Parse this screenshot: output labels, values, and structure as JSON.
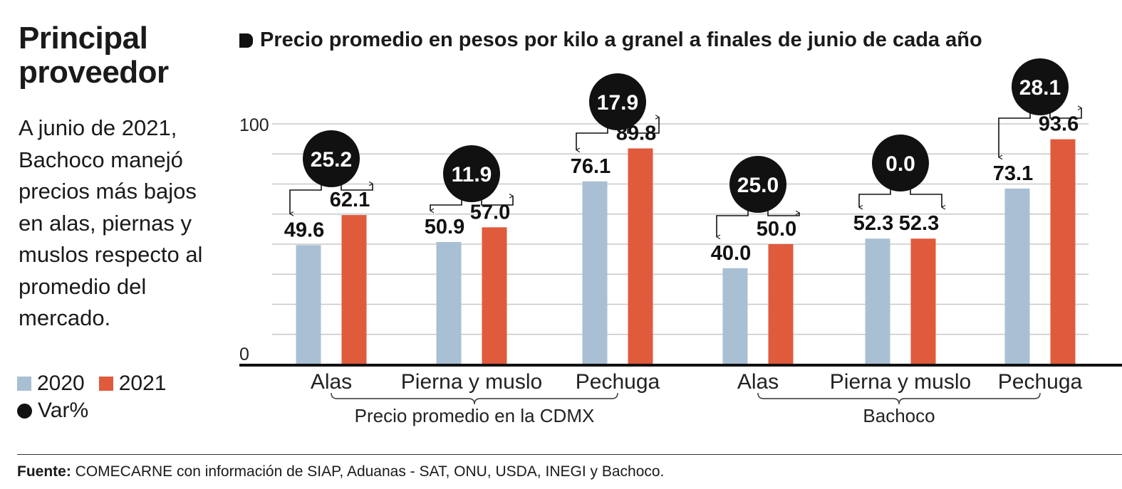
{
  "title": "Principal proveedor",
  "description": "A junio de 2021, Bachoco manejó precios más bajos en alas, piernas y muslos respecto al promedio del mercado.",
  "legend": {
    "series_2020": "2020",
    "series_2021": "2021",
    "var": "Var%"
  },
  "colors": {
    "series_2020": "#a9bfd3",
    "series_2021": "#df5b3c",
    "var_circle": "#111111",
    "gridline": "#c8c8c8"
  },
  "chart_data": {
    "type": "bar",
    "title": "Precio promedio en pesos por kilo a granel a finales de junio de cada año",
    "ylim": [
      0,
      100
    ],
    "yticks": [
      "0",
      "100"
    ],
    "grid": true,
    "legend_position": "left",
    "categories": [
      "Alas",
      "Pierna y muslo",
      "Pechuga",
      "Alas",
      "Pierna y muslo",
      "Pechuga"
    ],
    "groups": [
      {
        "label": "Precio promedio en la CDMX",
        "categories": [
          0,
          1,
          2
        ]
      },
      {
        "label": "Bachoco",
        "categories": [
          3,
          4,
          5
        ]
      }
    ],
    "series": [
      {
        "name": "2020",
        "values": [
          49.6,
          50.9,
          76.1,
          40.0,
          52.3,
          73.1
        ],
        "labels": [
          "49.6",
          "50.9",
          "76.1",
          "40.0",
          "52.3",
          "73.1"
        ]
      },
      {
        "name": "2021",
        "values": [
          62.1,
          57.0,
          89.8,
          50.0,
          52.3,
          93.6
        ],
        "labels": [
          "62.1",
          "57.0",
          "89.8",
          "50.0",
          "52.3",
          "93.6"
        ]
      }
    ],
    "var_pct": [
      "25.2",
      "11.9",
      "17.9",
      "25.0",
      "0.0",
      "28.1"
    ]
  },
  "source": {
    "label": "Fuente:",
    "text": "COMECARNE con información de SIAP, Aduanas - SAT, ONU, USDA, INEGI y Bachoco."
  }
}
